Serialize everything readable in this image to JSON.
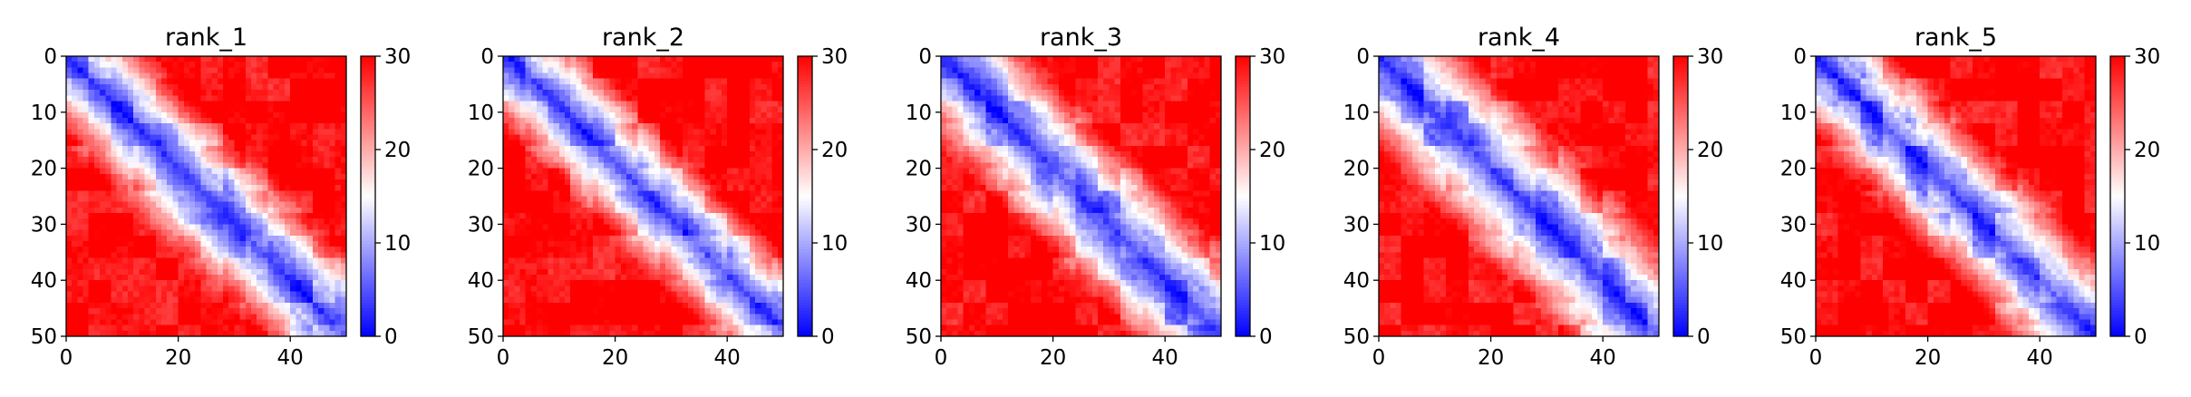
{
  "colormap": {
    "low": "#0000ff",
    "mid": "#ffffff",
    "high": "#ff0000",
    "vmin": 0,
    "vmax": 30
  },
  "chart_data": [
    {
      "type": "heatmap",
      "title": "rank_1",
      "size": 50,
      "xlim": [
        0,
        50
      ],
      "ylim": [
        50,
        0
      ],
      "x_ticks": [
        0,
        20,
        40
      ],
      "y_ticks": [
        0,
        10,
        20,
        30,
        40,
        50
      ],
      "colorbar": {
        "min": 0,
        "max": 30,
        "ticks": [
          0,
          10,
          20,
          30
        ]
      },
      "pattern": {
        "diag_offset": 0,
        "band": 1.0,
        "near_block": 10,
        "variant": 1
      }
    },
    {
      "type": "heatmap",
      "title": "rank_2",
      "size": 50,
      "xlim": [
        0,
        50
      ],
      "ylim": [
        50,
        0
      ],
      "x_ticks": [
        0,
        20,
        40
      ],
      "y_ticks": [
        0,
        10,
        20,
        30,
        40,
        50
      ],
      "colorbar": {
        "min": 0,
        "max": 30,
        "ticks": [
          0,
          10,
          20,
          30
        ]
      },
      "pattern": {
        "diag_offset": 1,
        "band": 1.1,
        "near_block": 14,
        "variant": 2
      }
    },
    {
      "type": "heatmap",
      "title": "rank_3",
      "size": 50,
      "xlim": [
        0,
        50
      ],
      "ylim": [
        50,
        0
      ],
      "x_ticks": [
        0,
        20,
        40
      ],
      "y_ticks": [
        0,
        10,
        20,
        30,
        40,
        50
      ],
      "colorbar": {
        "min": 0,
        "max": 30,
        "ticks": [
          0,
          10,
          20,
          30
        ]
      },
      "pattern": {
        "diag_offset": 0,
        "band": 0.95,
        "near_block": 8,
        "variant": 3
      }
    },
    {
      "type": "heatmap",
      "title": "rank_4",
      "size": 50,
      "xlim": [
        0,
        50
      ],
      "ylim": [
        50,
        0
      ],
      "x_ticks": [
        0,
        20,
        40
      ],
      "y_ticks": [
        0,
        10,
        20,
        30,
        40,
        50
      ],
      "colorbar": {
        "min": 0,
        "max": 30,
        "ticks": [
          0,
          10,
          20,
          30
        ]
      },
      "pattern": {
        "diag_offset": 0,
        "band": 0.9,
        "near_block": 8,
        "variant": 4
      }
    },
    {
      "type": "heatmap",
      "title": "rank_5",
      "size": 50,
      "xlim": [
        0,
        50
      ],
      "ylim": [
        50,
        0
      ],
      "x_ticks": [
        0,
        20,
        40
      ],
      "y_ticks": [
        0,
        10,
        20,
        30,
        40,
        50
      ],
      "colorbar": {
        "min": 0,
        "max": 30,
        "ticks": [
          0,
          10,
          20,
          30
        ]
      },
      "pattern": {
        "diag_offset": 0,
        "band": 1.0,
        "near_block": 9,
        "variant": 5
      }
    }
  ]
}
